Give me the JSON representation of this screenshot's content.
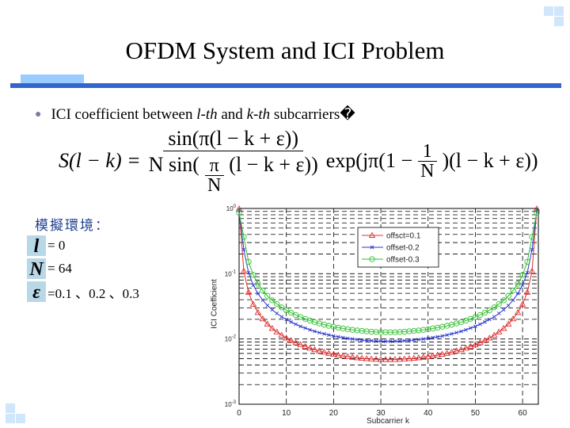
{
  "slide": {
    "title": "OFDM System and ICI Problem",
    "bullet": {
      "prefix": "ICI coefficient between ",
      "l_th": "l-th",
      "middle": " and ",
      "k_th": "k-th",
      "suffix": " subcarriers�"
    },
    "equation": {
      "lhs": "S(l − k) = ",
      "numerator": "sin(π(l − k + ε))",
      "denominator_prefix": "N sin(",
      "pi": "π",
      "N": "N",
      "denominator_suffix": "(l − k + ε))",
      "exp_prefix": "exp(jπ(1 − ",
      "one": "1",
      "exp_suffix": ")(l − k + ε))"
    },
    "simulation": {
      "title": "模擬環境：",
      "params": [
        {
          "symbol": "l",
          "value": "= 0"
        },
        {
          "symbol": "N",
          "value": "= 64"
        },
        {
          "symbol": "ε",
          "value": "=0.1 、0.2 、0.3"
        }
      ]
    },
    "colors": {
      "title_rule": "#3366cc",
      "title_accent": "#99ccff",
      "decor_squares": "#cfe6fb"
    }
  },
  "chart_data": {
    "type": "line",
    "xlabel": "Subcarrier k",
    "ylabel": "ICI Coefficient",
    "xlim": [
      0,
      63
    ],
    "ylim": [
      0.001,
      1
    ],
    "yscale": "log",
    "xticks": [
      0,
      10,
      20,
      30,
      40,
      50,
      60
    ],
    "yticks": [
      {
        "value": 1,
        "base": "10",
        "exp": "0"
      },
      {
        "value": 0.1,
        "base": "10",
        "exp": "-1"
      },
      {
        "value": 0.01,
        "base": "10",
        "exp": "-2"
      },
      {
        "value": 0.001,
        "base": "10",
        "exp": "-3"
      }
    ],
    "grid": true,
    "legend_placement": "top-center",
    "x": [
      0,
      1,
      2,
      3,
      4,
      5,
      6,
      7,
      8,
      9,
      10,
      11,
      12,
      13,
      14,
      15,
      16,
      17,
      18,
      19,
      20,
      21,
      22,
      23,
      24,
      25,
      26,
      27,
      28,
      29,
      30,
      31,
      32,
      33,
      34,
      35,
      36,
      37,
      38,
      39,
      40,
      41,
      42,
      43,
      44,
      45,
      46,
      47,
      48,
      49,
      50,
      51,
      52,
      53,
      54,
      55,
      56,
      57,
      58,
      59,
      60,
      61,
      62,
      63
    ],
    "series": [
      {
        "name": "offsct=0.1",
        "color": "#e03030",
        "marker": "triangle",
        "values": [
          0.984,
          0.109,
          0.0518,
          0.034,
          0.0254,
          0.0203,
          0.0169,
          0.0145,
          0.0128,
          0.0114,
          0.0103,
          0.00947,
          0.00875,
          0.00816,
          0.00766,
          0.00723,
          0.00686,
          0.00655,
          0.00627,
          0.00603,
          0.00583,
          0.00565,
          0.00549,
          0.00535,
          0.00524,
          0.00514,
          0.00505,
          0.00498,
          0.00493,
          0.00488,
          0.00485,
          0.00484,
          0.00484,
          0.00485,
          0.00488,
          0.00493,
          0.00498,
          0.00505,
          0.00514,
          0.00524,
          0.00535,
          0.00549,
          0.00565,
          0.00583,
          0.00603,
          0.00627,
          0.00655,
          0.00686,
          0.00723,
          0.00766,
          0.00816,
          0.00875,
          0.00947,
          0.0103,
          0.0114,
          0.0128,
          0.0145,
          0.0169,
          0.0203,
          0.0254,
          0.034,
          0.0518,
          0.109,
          0.984
        ]
      },
      {
        "name": "offset-0.2",
        "color": "#2a3ad0",
        "marker": "x",
        "values": [
          0.936,
          0.234,
          0.104,
          0.067,
          0.0495,
          0.0393,
          0.0327,
          0.028,
          0.0246,
          0.0219,
          0.0199,
          0.0182,
          0.0168,
          0.0156,
          0.0147,
          0.0138,
          0.0131,
          0.0125,
          0.012,
          0.0115,
          0.0111,
          0.0108,
          0.0105,
          0.0102,
          0.00998,
          0.00979,
          0.00963,
          0.00949,
          0.00938,
          0.0093,
          0.00924,
          0.0092,
          0.0092,
          0.00924,
          0.0093,
          0.00938,
          0.00949,
          0.00963,
          0.00979,
          0.00998,
          0.0102,
          0.0105,
          0.0108,
          0.0111,
          0.0115,
          0.012,
          0.0125,
          0.0131,
          0.0138,
          0.0147,
          0.0156,
          0.0168,
          0.0182,
          0.0199,
          0.0219,
          0.0246,
          0.028,
          0.0327,
          0.0393,
          0.0495,
          0.067,
          0.104,
          0.234,
          0.936
        ]
      },
      {
        "name": "offset-0.3",
        "color": "#30c030",
        "marker": "circle",
        "values": [
          0.858,
          0.368,
          0.152,
          0.0957,
          0.07,
          0.0553,
          0.0458,
          0.0391,
          0.0343,
          0.0305,
          0.0276,
          0.0252,
          0.0233,
          0.0217,
          0.0203,
          0.0191,
          0.0181,
          0.0173,
          0.0166,
          0.0159,
          0.0154,
          0.0149,
          0.0145,
          0.0141,
          0.0138,
          0.0135,
          0.0133,
          0.0131,
          0.0129,
          0.0128,
          0.0127,
          0.0127,
          0.0127,
          0.0127,
          0.0128,
          0.0129,
          0.0131,
          0.0133,
          0.0135,
          0.0138,
          0.0141,
          0.0145,
          0.0149,
          0.0154,
          0.0159,
          0.0166,
          0.0173,
          0.0181,
          0.0191,
          0.0203,
          0.0217,
          0.0233,
          0.0252,
          0.0276,
          0.0305,
          0.0343,
          0.0391,
          0.0458,
          0.0553,
          0.07,
          0.0957,
          0.152,
          0.368,
          0.858
        ]
      }
    ]
  }
}
